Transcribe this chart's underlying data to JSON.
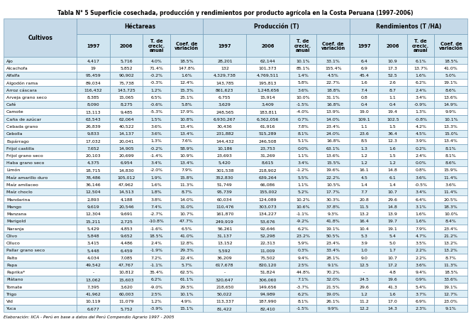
{
  "title": "Tabla N° 5 Superficie cosechada, producción y rendimientos por producto agrícola en la Costa Peruana (1997-2006)",
  "footer": "Elaboración: IICA - Perú en base a datos del Perú Compendio Agrario 1997 - 2005",
  "header_bg": "#c5d9e8",
  "subheader_bg": "#d0e5f0",
  "row_bg_even": "#ddeef6",
  "row_bg_odd": "#ffffff",
  "border_color": "#6090b0",
  "rows": [
    [
      "Ajo",
      "4,417",
      "5,716",
      "4.0%",
      "18.5%",
      "28,201",
      "62,144",
      "10.1%",
      "33.1%",
      "6.4",
      "10.9",
      "6.1%",
      "18.5%"
    ],
    [
      "Alcachofa",
      "19",
      "5,852",
      "71.4%",
      "147.8%",
      "132",
      "101,373",
      "85.1%",
      "155.4%",
      "6.9",
      "17.3",
      "13.7%",
      "41.0%"
    ],
    [
      "Alfalfa",
      "95,459",
      "90,902",
      "-0.2%",
      "1.6%",
      "4,329,738",
      "4,769,511",
      "1.4%",
      "4.5%",
      "45.4",
      "52.5",
      "1.6%",
      "5.0%"
    ],
    [
      "Algodón rama",
      "89,034",
      "75,738",
      "-0.3%",
      "12.4%",
      "143,785",
      "195,813",
      "5.8%",
      "22.7%",
      "1.6",
      "2.6",
      "6.2%",
      "19.1%"
    ],
    [
      "Arroz cáscara",
      "116,432",
      "143,725",
      "1.2%",
      "15.3%",
      "861,623",
      "1,248,656",
      "3.6%",
      "18.8%",
      "7.4",
      "8.7",
      "2.4%",
      "8.6%"
    ],
    [
      "Arveja grano seco",
      "8,385",
      "15,065",
      "6.5%",
      "25.1%",
      "6,755",
      "15,914",
      "10.0%",
      "31.1%",
      "0.8",
      "1.1",
      "3.4%",
      "13.6%"
    ],
    [
      "Café",
      "8,090",
      "8,275",
      "-0.6%",
      "5.8%",
      "3,629",
      "3,409",
      "-1.5%",
      "16.8%",
      "0.4",
      "0.4",
      "-0.9%",
      "14.9%"
    ],
    [
      "Camote",
      "13,113",
      "9,485",
      "-5.3%",
      "17.9%",
      "248,565",
      "183,811",
      "-4.0%",
      "13.9%",
      "19.0",
      "19.4",
      "1.3%",
      "9.9%"
    ],
    [
      "Caña de azúcar",
      "63,543",
      "62,064",
      "1.5%",
      "10.8%",
      "6,930,267",
      "6,362,056",
      "0.7%",
      "14.0%",
      "109.1",
      "102.5",
      "-0.8%",
      "10.1%"
    ],
    [
      "Cebada grano",
      "26,839",
      "40,522",
      "3.6%",
      "13.4%",
      "30,436",
      "61,916",
      "7.8%",
      "23.4%",
      "1.1",
      "1.5",
      "4.2%",
      "13.3%"
    ],
    [
      "Cebolla",
      "9,833",
      "14,137",
      "3.6%",
      "13.4%",
      "231,882",
      "515,289",
      "8.1%",
      "24.0%",
      "23.6",
      "36.4",
      "4.5%",
      "15.0%"
    ],
    [
      "Espárrago",
      "17,032",
      "20,041",
      "1.3%",
      "7.6%",
      "144,432",
      "246,508",
      "5.1%",
      "16.8%",
      "8.5",
      "12.3",
      "3.9%",
      "13.4%"
    ],
    [
      "Frijol castilla",
      "7,652",
      "14,905",
      "-0.2%",
      "58.9%",
      "10,186",
      "23,753",
      "0.0%",
      "63.1%",
      "1.3",
      "1.6",
      "0.2%",
      "8.1%"
    ],
    [
      "Frijol grano seco",
      "20,103",
      "20,699",
      "-1.4%",
      "10.9%",
      "23,693",
      "31,269",
      "1.1%",
      "13.6%",
      "1.2",
      "1.5",
      "2.4%",
      "8.1%"
    ],
    [
      "Haba grano seco",
      "4,375",
      "6,954",
      "3.4%",
      "13.4%",
      "5,420",
      "8,615",
      "3.4%",
      "15.5%",
      "1.2",
      "1.2",
      "0.0%",
      "8.6%"
    ],
    [
      "Limón",
      "18,715",
      "14,830",
      "-2.0%",
      "7.9%",
      "301,538",
      "218,902",
      "-1.2%",
      "19.6%",
      "16.1",
      "14.8",
      "0.8%",
      "15.9%"
    ],
    [
      "Maíz amarillo duro",
      "78,486",
      "105,012",
      "1.9%",
      "15.8%",
      "352,830",
      "639,264",
      "5.5%",
      "22.2%",
      "4.5",
      "6.1",
      "3.6%",
      "11.4%"
    ],
    [
      "Maíz amilaceo",
      "36,146",
      "47,962",
      "1.6%",
      "11.3%",
      "51,749",
      "66,086",
      "1.1%",
      "10.5%",
      "1.4",
      "1.4",
      "-0.5%",
      "3.6%"
    ],
    [
      "Maíz choclo",
      "12,504",
      "14,513",
      "1.8%",
      "8.7%",
      "95,739",
      "155,002",
      "5.2%",
      "17.7%",
      "7.7",
      "10.7",
      "3.4%",
      "11.4%"
    ],
    [
      "Mandarina",
      "2,893",
      "4,188",
      "3.8%",
      "14.0%",
      "60,034",
      "124,089",
      "10.2%",
      "30.3%",
      "20.8",
      "29.6",
      "6.4%",
      "20.5%"
    ],
    [
      "Mango",
      "9,619",
      "20,546",
      "7.4%",
      "31.0%",
      "110,476",
      "303,073",
      "10.6%",
      "37.8%",
      "11.5",
      "14.8",
      "3.1%",
      "18.3%"
    ],
    [
      "Manzana",
      "12,304",
      "9,691",
      "-2.7%",
      "10.7%",
      "161,870",
      "134,227",
      "-1.1%",
      "9.3%",
      "13.2",
      "13.9",
      "1.6%",
      "10.0%"
    ],
    [
      "Marigold",
      "15,211",
      "2,725",
      "-10.8%",
      "47.7%",
      "249,919",
      "53,676",
      "-9.2%",
      "41.8%",
      "16.4",
      "19.7",
      "1.6%",
      "8.4%"
    ],
    [
      "Naranja",
      "5,429",
      "4,853",
      "-1.6%",
      "6.5%",
      "56,261",
      "92,646",
      "6.2%",
      "19.1%",
      "10.4",
      "19.1",
      "7.9%",
      "23.4%"
    ],
    [
      "Olivo",
      "5,848",
      "9,652",
      "18.5%",
      "41.0%",
      "31,137",
      "52,298",
      "23.2%",
      "50.5%",
      "5.3",
      "5.4",
      "4.7%",
      "21.2%"
    ],
    [
      "Olluco",
      "3,415",
      "4,486",
      "2.4%",
      "12.8%",
      "13,152",
      "22,313",
      "5.9%",
      "23.4%",
      "3.9",
      "5.0",
      "3.5%",
      "13.2%"
    ],
    [
      "Pallar grano seco",
      "5,448",
      "6,459",
      "-1.9%",
      "29.3%",
      "5,592",
      "11,009",
      "0.3%",
      "33.4%",
      "1.0",
      "1.7",
      "2.2%",
      "13.2%"
    ],
    [
      "Palto",
      "4,034",
      "7,085",
      "7.2%",
      "22.4%",
      "36,209",
      "75,502",
      "9.4%",
      "28.1%",
      "9.0",
      "10.7",
      "2.2%",
      "8.7%"
    ],
    [
      "Papa",
      "49,542",
      "47,767",
      "-1.1%",
      "5.7%",
      "617,678",
      "820,120",
      "2.5%",
      "9.1%",
      "12.5",
      "17.2",
      "3.6%",
      "11.3%"
    ],
    [
      "Paprika*",
      "-",
      "10,812",
      "35.4%",
      "62.5%",
      "-",
      "51,824",
      "44.8%",
      "70.2%",
      "-",
      "4.8",
      "9.4%",
      "18.5%"
    ],
    [
      "Plátano",
      "13,062",
      "15,603",
      "6.2%",
      "61.1%",
      "320,647",
      "306,060",
      "7.1%",
      "32.0%",
      "24.5",
      "19.6",
      "0.9%",
      "33.6%"
    ],
    [
      "Tomate",
      "7,395",
      "3,620",
      "-9.0%",
      "29.5%",
      "218,650",
      "149,656",
      "-3.7%",
      "21.5%",
      "29.6",
      "41.3",
      "5.4%",
      "19.1%"
    ],
    [
      "Trigo",
      "41,962",
      "60,003",
      "2.5%",
      "10.1%",
      "50,022",
      "94,989",
      "6.2%",
      "19.0%",
      "1.2",
      "1.6",
      "3.7%",
      "12.7%"
    ],
    [
      "Vid",
      "10,119",
      "11,079",
      "1.2%",
      "4.9%",
      "113,337",
      "187,990",
      "8.1%",
      "26.1%",
      "11.2",
      "17.0",
      "6.9%",
      "23.0%"
    ],
    [
      "Yuca",
      "6,677",
      "5,752",
      "-3.9%",
      "15.1%",
      "81,422",
      "82,410",
      "-1.5%",
      "9.9%",
      "12.2",
      "14.3",
      "2.3%",
      "9.1%"
    ]
  ]
}
